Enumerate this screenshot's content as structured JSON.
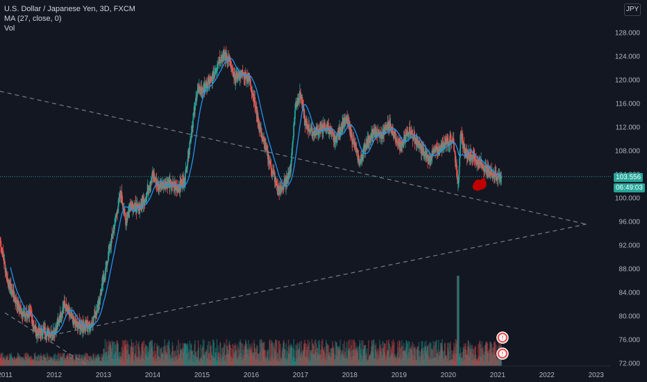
{
  "header": {
    "symbol_line": "U.S. Dollar / Japanese Yen, 3D, FXCM",
    "ma_line": "MA (27, close, 0)",
    "vol_line": "Vol"
  },
  "currency_button": "JPY",
  "price_badge": {
    "price": "103.556",
    "countdown": "06:49:03"
  },
  "colors": {
    "background": "#131722",
    "grid": "#1e2230",
    "up": "#26a69a",
    "down": "#ef5350",
    "ma": "#2196f3",
    "trendline": "#9598a1",
    "price_line": "#26a69a"
  },
  "chart_data": {
    "type": "candlestick",
    "interval": "3D",
    "x_axis": {
      "labels": [
        "2011",
        "2012",
        "2013",
        "2014",
        "2015",
        "2016",
        "2017",
        "2018",
        "2019",
        "2020",
        "2021",
        "2022",
        "2023"
      ],
      "range": [
        2010.9,
        2023.3
      ]
    },
    "y_axis": {
      "ticks": [
        72,
        76,
        80,
        84,
        88,
        92,
        96,
        100,
        104,
        108,
        112,
        116,
        120,
        124,
        128
      ],
      "labels": [
        "72.000",
        "76.000",
        "80.000",
        "84.000",
        "88.000",
        "92.000",
        "96.000",
        "100.000",
        "104.000",
        "108.000",
        "112.000",
        "116.000",
        "120.000",
        "124.000",
        "128.000"
      ],
      "range": [
        71.5,
        132.5
      ],
      "scale": "linear",
      "position": "right"
    },
    "grid": false,
    "last_price": 103.556,
    "close_path": [
      [
        2010.9,
        93.0
      ],
      [
        2011.05,
        86.0
      ],
      [
        2011.15,
        84.0
      ],
      [
        2011.25,
        82.0
      ],
      [
        2011.4,
        80.0
      ],
      [
        2011.5,
        80.5
      ],
      [
        2011.65,
        77.0
      ],
      [
        2011.8,
        77.5
      ],
      [
        2011.95,
        77.0
      ],
      [
        2012.05,
        78.0
      ],
      [
        2012.2,
        82.0
      ],
      [
        2012.35,
        79.5
      ],
      [
        2012.45,
        78.5
      ],
      [
        2012.6,
        78.2
      ],
      [
        2012.75,
        78.5
      ],
      [
        2012.9,
        82.0
      ],
      [
        2013.05,
        88.0
      ],
      [
        2013.2,
        94.5
      ],
      [
        2013.35,
        101.0
      ],
      [
        2013.45,
        96.0
      ],
      [
        2013.55,
        99.0
      ],
      [
        2013.7,
        98.0
      ],
      [
        2013.85,
        100.0
      ],
      [
        2014.0,
        104.0
      ],
      [
        2014.1,
        102.0
      ],
      [
        2014.3,
        102.5
      ],
      [
        2014.5,
        101.5
      ],
      [
        2014.65,
        103.0
      ],
      [
        2014.75,
        109.0
      ],
      [
        2014.9,
        118.0
      ],
      [
        2015.05,
        118.5
      ],
      [
        2015.2,
        120.0
      ],
      [
        2015.35,
        123.5
      ],
      [
        2015.45,
        124.0
      ],
      [
        2015.55,
        123.5
      ],
      [
        2015.65,
        120.0
      ],
      [
        2015.8,
        121.0
      ],
      [
        2015.95,
        120.5
      ],
      [
        2016.05,
        117.0
      ],
      [
        2016.15,
        112.5
      ],
      [
        2016.3,
        108.0
      ],
      [
        2016.45,
        104.0
      ],
      [
        2016.55,
        101.0
      ],
      [
        2016.7,
        102.5
      ],
      [
        2016.8,
        105.0
      ],
      [
        2016.9,
        116.0
      ],
      [
        2017.0,
        117.5
      ],
      [
        2017.1,
        112.5
      ],
      [
        2017.25,
        111.0
      ],
      [
        2017.4,
        111.5
      ],
      [
        2017.55,
        112.0
      ],
      [
        2017.7,
        109.5
      ],
      [
        2017.85,
        112.5
      ],
      [
        2017.95,
        113.0
      ],
      [
        2018.05,
        110.0
      ],
      [
        2018.2,
        106.0
      ],
      [
        2018.35,
        109.5
      ],
      [
        2018.5,
        111.0
      ],
      [
        2018.65,
        110.5
      ],
      [
        2018.8,
        112.5
      ],
      [
        2018.95,
        110.0
      ],
      [
        2019.05,
        108.5
      ],
      [
        2019.2,
        111.5
      ],
      [
        2019.35,
        109.5
      ],
      [
        2019.5,
        107.5
      ],
      [
        2019.6,
        106.5
      ],
      [
        2019.7,
        107.5
      ],
      [
        2019.85,
        108.5
      ],
      [
        2019.95,
        109.5
      ],
      [
        2020.1,
        109.8
      ],
      [
        2020.2,
        102.0
      ],
      [
        2020.25,
        110.5
      ],
      [
        2020.35,
        107.5
      ],
      [
        2020.5,
        107.0
      ],
      [
        2020.6,
        106.0
      ],
      [
        2020.7,
        105.5
      ],
      [
        2020.8,
        104.5
      ],
      [
        2020.9,
        104.0
      ],
      [
        2021.0,
        103.6
      ],
      [
        2021.08,
        103.556
      ]
    ],
    "moving_average": {
      "name": "MA (27, close, 0)",
      "period": 27
    },
    "trendlines": [
      {
        "from": [
          2010.9,
          118.0
        ],
        "to": [
          2022.8,
          95.5
        ],
        "style": "dashed"
      },
      {
        "from": [
          2011.0,
          80.5
        ],
        "to": [
          2012.7,
          71.5
        ],
        "style": "dashed"
      },
      {
        "from": [
          2011.65,
          76.2
        ],
        "to": [
          2022.8,
          95.5
        ],
        "style": "dashed"
      }
    ],
    "volume": {
      "relative_spike": [
        2020.2,
        1.0
      ],
      "typical_level": 0.27
    },
    "annotations": [
      {
        "type": "highlight",
        "at": [
          2020.6,
          102.5
        ],
        "color": "#c00000"
      },
      {
        "type": "alert",
        "at": [
          2021.1,
          76.3
        ],
        "label": "!"
      },
      {
        "type": "alert",
        "at": [
          2021.1,
          73.6
        ],
        "label": "!"
      }
    ]
  }
}
